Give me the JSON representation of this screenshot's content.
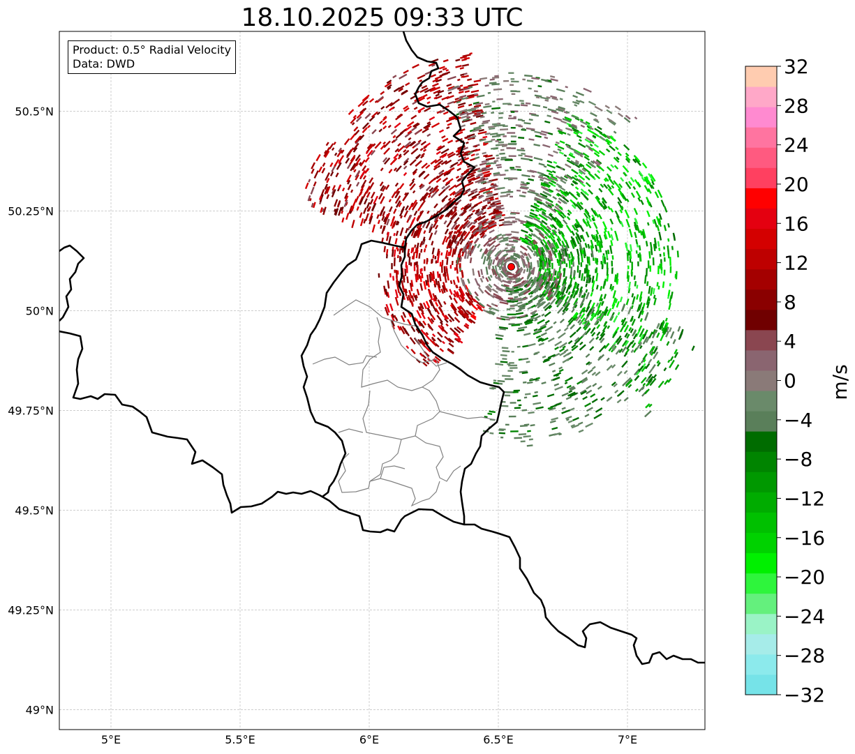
{
  "title": "18.10.2025 09:33 UTC",
  "info": {
    "product": "Product: 0.5° Radial Velocity",
    "data": "Data: DWD"
  },
  "map": {
    "lon_range": [
      4.8,
      7.3
    ],
    "lat_range": [
      48.95,
      50.7
    ],
    "lon_ticks": [
      {
        "value": 5.0,
        "label": "5°E"
      },
      {
        "value": 5.5,
        "label": "5.5°E"
      },
      {
        "value": 6.0,
        "label": "6°E"
      },
      {
        "value": 6.5,
        "label": "6.5°E"
      },
      {
        "value": 7.0,
        "label": "7°E"
      }
    ],
    "lat_ticks": [
      {
        "value": 49.0,
        "label": "49°N"
      },
      {
        "value": 49.25,
        "label": "49.25°N"
      },
      {
        "value": 49.5,
        "label": "49.5°N"
      },
      {
        "value": 49.75,
        "label": "49.75°N"
      },
      {
        "value": 50.0,
        "label": "50°N"
      },
      {
        "value": 50.25,
        "label": "50.25°N"
      },
      {
        "value": 50.5,
        "label": "50.5°N"
      }
    ],
    "radar_site": {
      "lon": 6.55,
      "lat": 50.11
    },
    "country_border_color": "#000000",
    "admin_border_color": "#808080"
  },
  "colorbar": {
    "unit": "m/s",
    "min": -32,
    "max": 32,
    "tick_values": [
      -32,
      -28,
      -24,
      -20,
      -16,
      -12,
      -8,
      -4,
      0,
      4,
      8,
      12,
      16,
      20,
      24,
      28,
      32
    ],
    "tick_labels": [
      "−32",
      "−28",
      "−24",
      "−20",
      "−16",
      "−12",
      "−8",
      "−4",
      "0",
      "4",
      "8",
      "12",
      "16",
      "20",
      "24",
      "28",
      "32"
    ],
    "colors": [
      "#76e3e8",
      "#8ceaec",
      "#a6ece9",
      "#9af3c6",
      "#64f07d",
      "#2ef53c",
      "#00f000",
      "#00d200",
      "#00c000",
      "#00ac00",
      "#009800",
      "#008400",
      "#006c00",
      "#5a7f5a",
      "#6a8a6a",
      "#8a7a78",
      "#8a6570",
      "#8a4650",
      "#700000",
      "#8a0000",
      "#a40000",
      "#be0000",
      "#d40000",
      "#e40010",
      "#ff0000",
      "#ff4060",
      "#ff5a80",
      "#ff74a0",
      "#ff8ad0",
      "#ffa8c8",
      "#ffccb0"
    ]
  }
}
